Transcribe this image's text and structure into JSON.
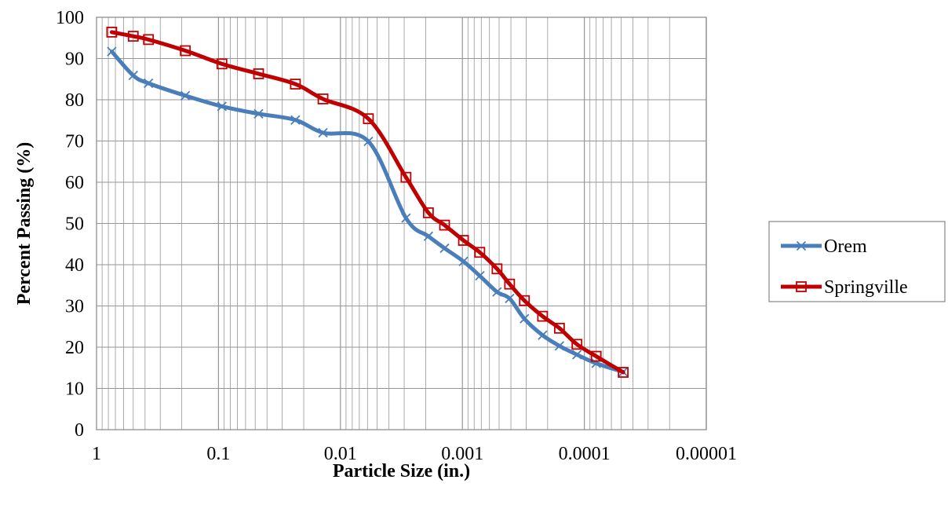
{
  "chart_data": {
    "type": "line",
    "xlabel": "Particle Size (in.)",
    "ylabel": "Percent Passing (%)",
    "x_scale": "log",
    "x_reversed": true,
    "xlim": [
      1,
      1e-05
    ],
    "ylim": [
      0,
      100
    ],
    "x_ticks": [
      {
        "value": 1,
        "label": "1"
      },
      {
        "value": 0.1,
        "label": "0.1"
      },
      {
        "value": 0.01,
        "label": "0.01"
      },
      {
        "value": 0.001,
        "label": "0.001"
      },
      {
        "value": 0.0001,
        "label": "0.0001"
      },
      {
        "value": 1e-05,
        "label": "0.00001"
      }
    ],
    "y_ticks": [
      0,
      10,
      20,
      30,
      40,
      50,
      60,
      70,
      80,
      90,
      100
    ],
    "grid": "on",
    "legend_position": "right",
    "series": [
      {
        "name": "Orem",
        "color": "#4a7ebb",
        "marker": "x",
        "x": [
          0.75,
          0.5,
          0.375,
          0.187,
          0.0937,
          0.0469,
          0.0234,
          0.0139,
          0.0059,
          0.0029,
          0.0019,
          0.0014,
          0.00098,
          0.00072,
          0.00052,
          0.00041,
          0.00031,
          0.00022,
          0.00016,
          0.000115,
          8e-05,
          4.8e-05
        ],
        "y": [
          91.7,
          85.9,
          84.0,
          81.0,
          78.4,
          76.6,
          75.1,
          72.0,
          69.9,
          51.3,
          46.9,
          44.0,
          40.8,
          37.3,
          33.4,
          31.8,
          26.9,
          22.9,
          20.3,
          18.2,
          16.1,
          14.0
        ]
      },
      {
        "name": "Springville",
        "color": "#c00000",
        "marker": "square",
        "x": [
          0.75,
          0.5,
          0.375,
          0.187,
          0.0937,
          0.0469,
          0.0234,
          0.0139,
          0.0059,
          0.0029,
          0.0019,
          0.0014,
          0.00098,
          0.00072,
          0.00052,
          0.00041,
          0.00031,
          0.00022,
          0.00016,
          0.000115,
          8e-05,
          4.8e-05
        ],
        "y": [
          96.4,
          95.4,
          94.6,
          91.9,
          88.7,
          86.3,
          83.8,
          80.2,
          75.4,
          61.2,
          52.6,
          49.6,
          45.9,
          43.0,
          39.0,
          35.3,
          31.3,
          27.5,
          24.6,
          20.7,
          17.8,
          13.9
        ]
      }
    ]
  }
}
